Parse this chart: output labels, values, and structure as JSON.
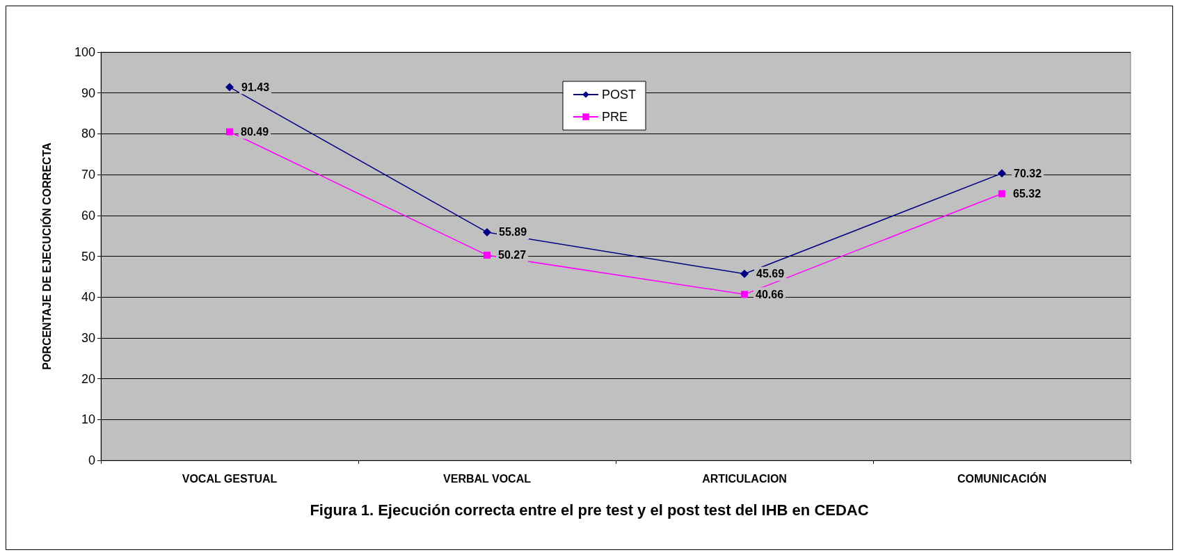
{
  "chart_data": {
    "type": "line",
    "title": "Figura 1. Ejecución correcta entre el pre test y el post test del IHB en CEDAC",
    "ylabel": "PORCENTAJE DE EJECUCIÓN CORRECTA",
    "categories": [
      "VOCAL GESTUAL",
      "VERBAL VOCAL",
      "ARTICULACION",
      "COMUNICACIÓN"
    ],
    "series": [
      {
        "name": "POST",
        "color": "#000080",
        "marker": "diamond",
        "values": [
          91.43,
          55.89,
          45.69,
          70.32
        ]
      },
      {
        "name": "PRE",
        "color": "#ff00ff",
        "marker": "square",
        "values": [
          80.49,
          50.27,
          40.66,
          65.32
        ]
      }
    ],
    "ylim": [
      0,
      100
    ],
    "yticks": [
      0,
      10,
      20,
      30,
      40,
      50,
      60,
      70,
      80,
      90,
      100
    ],
    "grid": "y",
    "legend": "top",
    "data_labels": true
  }
}
